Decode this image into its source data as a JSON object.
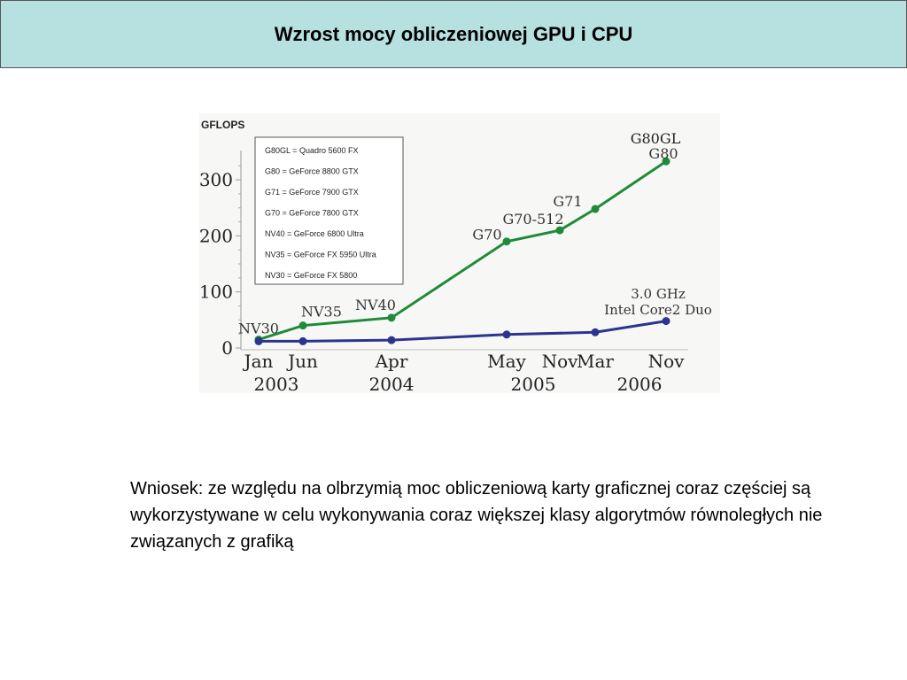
{
  "slide": {
    "title": "Wzrost mocy obliczeniowej GPU i CPU",
    "conclusion": "Wniosek: ze względu na olbrzymią moc obliczeniową karty graficznej coraz częściej są wykorzystywane w celu wykonywania coraz większej klasy algorytmów równoległych nie związanych z grafiką"
  },
  "colors": {
    "gpu": "#1f8a3a",
    "cpu": "#2b3590",
    "header_bg": "#b7e0e0"
  },
  "chart_data": {
    "type": "line",
    "ylabel": "GFLOPS",
    "ylim": [
      0,
      340
    ],
    "yticks": [
      0,
      100,
      200,
      300
    ],
    "x_ticks": [
      {
        "label": "Jan",
        "t": 0
      },
      {
        "label": "Jun",
        "t": 5
      },
      {
        "label": "Apr",
        "t": 15
      },
      {
        "label": "May",
        "t": 28
      },
      {
        "label": "Nov",
        "t": 34
      },
      {
        "label": "Mar",
        "t": 38
      },
      {
        "label": "Nov",
        "t": 46
      }
    ],
    "x_years": [
      {
        "label": "2003",
        "t": 2
      },
      {
        "label": "2004",
        "t": 15
      },
      {
        "label": "2005",
        "t": 31
      },
      {
        "label": "2006",
        "t": 43
      }
    ],
    "series": [
      {
        "key": "gpu",
        "points": [
          {
            "t": 0,
            "y": 15,
            "label": "NV30"
          },
          {
            "t": 5,
            "y": 40,
            "label": "NV35"
          },
          {
            "t": 15,
            "y": 54,
            "label": "NV40"
          },
          {
            "t": 28,
            "y": 190,
            "label": "G70"
          },
          {
            "t": 34,
            "y": 210,
            "label": "G70-512"
          },
          {
            "t": 38,
            "y": 248,
            "label": "G71"
          },
          {
            "t": 46,
            "y": 333,
            "label": "G80"
          }
        ],
        "end_label_top": "G80GL"
      },
      {
        "key": "cpu",
        "points": [
          {
            "t": 0,
            "y": 12
          },
          {
            "t": 5,
            "y": 12
          },
          {
            "t": 15,
            "y": 14
          },
          {
            "t": 28,
            "y": 24
          },
          {
            "t": 38,
            "y": 28
          },
          {
            "t": 46,
            "y": 48
          }
        ],
        "annotation": [
          "3.0 GHz",
          "Intel Core2 Duo"
        ]
      }
    ],
    "legend": {
      "placement": "top-left",
      "entries": [
        "G80GL = Quadro 5600 FX",
        "G80 = GeForce 8800 GTX",
        "G71 = GeForce 7900 GTX",
        "G70 = GeForce 7800 GTX",
        "NV40 = GeForce 6800 Ultra",
        "NV35 = GeForce FX 5950 Ultra",
        "NV30 = GeForce FX 5800"
      ]
    }
  }
}
